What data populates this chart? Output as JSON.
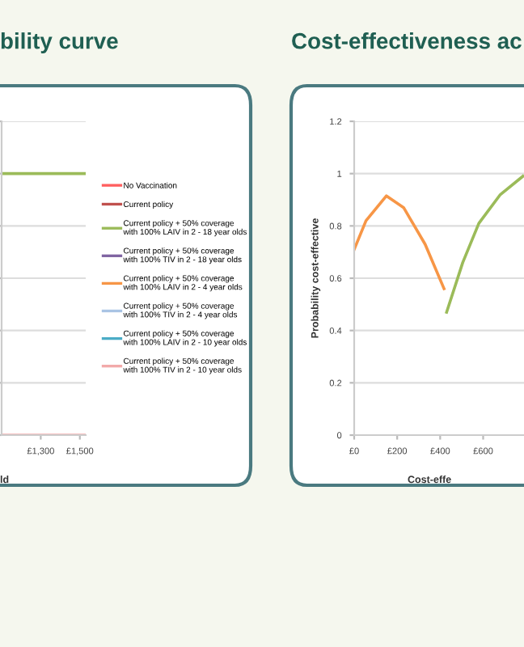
{
  "chart_data": [
    {
      "type": "line",
      "title": "bility curve",
      "xlabel": "ld",
      "x": [
        1100,
        1530
      ],
      "xlim": [
        1100,
        1530
      ],
      "xticks": [
        {
          "value": 1300,
          "label": "£1,300"
        },
        {
          "value": 1500,
          "label": "£1,500"
        }
      ],
      "ylim": [
        0,
        1.2
      ],
      "yticks": [
        {
          "value": 0,
          "label": null
        },
        {
          "value": 0.2,
          "label": null
        },
        {
          "value": 0.4,
          "label": null
        },
        {
          "value": 0.6,
          "label": null
        },
        {
          "value": 0.8,
          "label": null
        },
        {
          "value": 1,
          "label": null
        },
        {
          "value": 1.2,
          "label": null
        }
      ],
      "tick_labels": "x",
      "grid": "y",
      "legend": "right",
      "series": [
        {
          "name": "No Vaccination",
          "color": "#ff5f5f",
          "values": [
            null,
            null
          ]
        },
        {
          "name": "Current policy",
          "color": "#c0504d",
          "values": [
            null,
            null
          ]
        },
        {
          "name": "Current policy + 50% coverage\nwith 100% LAIV in 2 - 18 year olds",
          "color": "#9bbb59",
          "values": [
            1,
            1
          ]
        },
        {
          "name": "Current policy + 50% coverage\nwith 100% TIV in 2 - 18 year olds",
          "color": "#8064a2",
          "values": [
            null,
            null
          ]
        },
        {
          "name": "Current policy + 50% coverage\nwith 100% LAIV in 2 - 4 year olds",
          "color": "#f79646",
          "values": [
            null,
            null
          ]
        },
        {
          "name": "Current policy + 50% coverage\nwith 100% TIV in 2 - 4 year olds",
          "color": "#a9c4e4",
          "values": [
            null,
            null
          ]
        },
        {
          "name": "Current policy + 50% coverage\nwith 100% LAIV in 2 - 10 year olds",
          "color": "#4bacc6",
          "values": [
            null,
            null
          ]
        },
        {
          "name": "Current policy + 50% coverage\nwith 100% TIV in 2 - 10 year olds",
          "color": "#f2aaaa",
          "values": [
            0,
            0
          ]
        }
      ]
    },
    {
      "type": "line",
      "title": "Cost-effectiveness ac",
      "xlabel": "Cost-effe",
      "ylabel": "Probability cost-effective",
      "xlim": [
        0,
        790
      ],
      "xticks": [
        {
          "value": 0,
          "label": "£0"
        },
        {
          "value": 200,
          "label": "£200"
        },
        {
          "value": 400,
          "label": "£400"
        },
        {
          "value": 600,
          "label": "£600"
        }
      ],
      "ylim": [
        0,
        1.2
      ],
      "yticks": [
        0,
        0.2,
        0.4,
        0.6,
        0.8,
        1,
        1.2
      ],
      "grid": "y",
      "series": [
        {
          "color": "#f79646",
          "x": [
            0,
            55,
            150,
            230,
            330,
            418
          ],
          "values": [
            0.71,
            0.82,
            0.915,
            0.87,
            0.73,
            0.56
          ]
        },
        {
          "color": "#9bbb59",
          "x": [
            430,
            505,
            580,
            680,
            785
          ],
          "values": [
            0.47,
            0.66,
            0.81,
            0.92,
            0.99
          ]
        }
      ]
    }
  ]
}
